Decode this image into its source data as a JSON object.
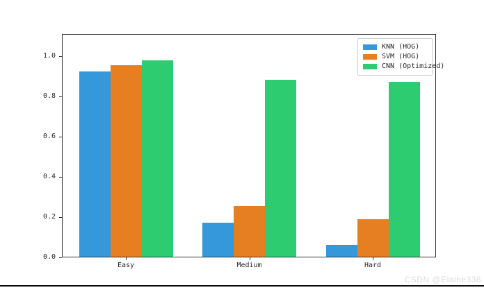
{
  "chart_data": {
    "type": "bar",
    "title": "",
    "xlabel": "",
    "ylabel": "",
    "categories": [
      "Easy",
      "Medium",
      "Hard"
    ],
    "series": [
      {
        "name": "KNN (HOG)",
        "color": "#3498db",
        "values": [
          0.92,
          0.17,
          0.06
        ]
      },
      {
        "name": "SVM (HOG)",
        "color": "#e67e22",
        "values": [
          0.95,
          0.25,
          0.185
        ]
      },
      {
        "name": "CNN (Optimized)",
        "color": "#2ecc71",
        "values": [
          0.975,
          0.88,
          0.87
        ]
      }
    ],
    "ylim": [
      0,
      1.11
    ],
    "yticks": [
      0.0,
      0.2,
      0.4,
      0.6,
      0.8,
      1.0
    ],
    "grid": false,
    "legend_position": "upper right"
  },
  "watermark": {
    "text": "CSDN @Elaine336",
    "color": "#dcdcdc"
  }
}
